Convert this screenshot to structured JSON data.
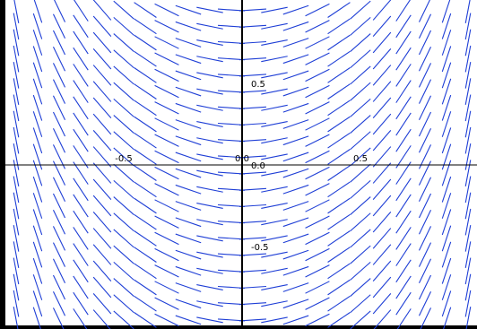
{
  "chart_data": {
    "type": "vector_field",
    "title": "",
    "xlabel": "",
    "ylabel": "",
    "xlim": [
      -1.0,
      1.0
    ],
    "ylim": [
      -1.0,
      1.0
    ],
    "grid": false,
    "legend": "none",
    "x_tick_labels": [
      {
        "value": -0.5,
        "text": "-0.5"
      },
      {
        "value": 0.0,
        "text": "0.0"
      },
      {
        "value": 0.5,
        "text": "0.5"
      }
    ],
    "y_tick_labels": [
      {
        "value": 0.5,
        "text": "0.5"
      },
      {
        "value": 0.0,
        "text": "0.0"
      },
      {
        "value": -0.5,
        "text": "-0.5"
      }
    ],
    "direction_field": {
      "slope_function": "tan(x)",
      "x_samples": 22,
      "y_samples": 20,
      "color": "#1f3fd6"
    },
    "colors": {
      "axis": "#000000",
      "segments": "#1f3fd6",
      "background": "#ffffff"
    }
  }
}
